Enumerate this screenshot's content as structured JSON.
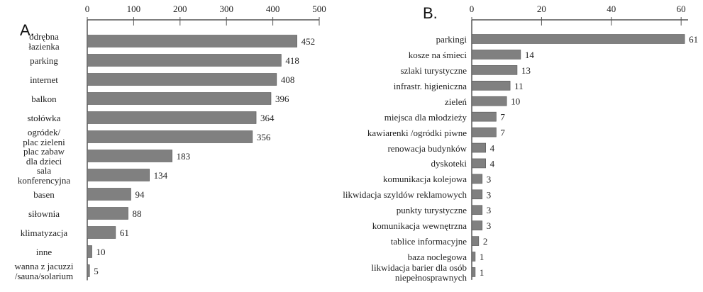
{
  "chart_data": [
    {
      "type": "bar",
      "title": "A.",
      "categories": [
        "odrębna\nłazienka",
        "parking",
        "internet",
        "balkon",
        "stołówka",
        "ogródek/\nplac zieleni",
        "plac zabaw\ndla dzieci",
        "sala\nkonferencyjna",
        "basen",
        "siłownia",
        "klimatyzacja",
        "inne",
        "wanna z jacuzzi\n/sauna/solarium"
      ],
      "values": [
        452,
        418,
        408,
        396,
        364,
        356,
        183,
        134,
        94,
        88,
        61,
        10,
        5
      ],
      "color": "#808080",
      "xlim": [
        0,
        500
      ],
      "xticks": [
        0,
        100,
        200,
        300,
        400,
        500
      ],
      "grid": false
    },
    {
      "type": "bar",
      "title": "B.",
      "categories": [
        "parkingi",
        "kosze na śmieci",
        "szlaki turystyczne",
        "infrastr. higieniczna",
        "zieleń",
        "miejsca dla młodzieży",
        "kawiarenki /ogródki piwne",
        "renowacja budynków",
        "dyskoteki",
        "komunikacja kolejowa",
        "likwidacja szyldów reklamowych",
        "punkty turystyczne",
        "komunikacja wewnętrzna",
        "tablice informacyjne",
        "baza noclegowa",
        "likwidacja barier dla osób\nniepełnosprawnych"
      ],
      "values": [
        61,
        14,
        13,
        11,
        10,
        7,
        7,
        4,
        4,
        3,
        3,
        3,
        3,
        2,
        1,
        1
      ],
      "color": "#808080",
      "xlim": [
        0,
        62
      ],
      "xticks": [
        0,
        20,
        40,
        60
      ],
      "grid": false
    }
  ]
}
